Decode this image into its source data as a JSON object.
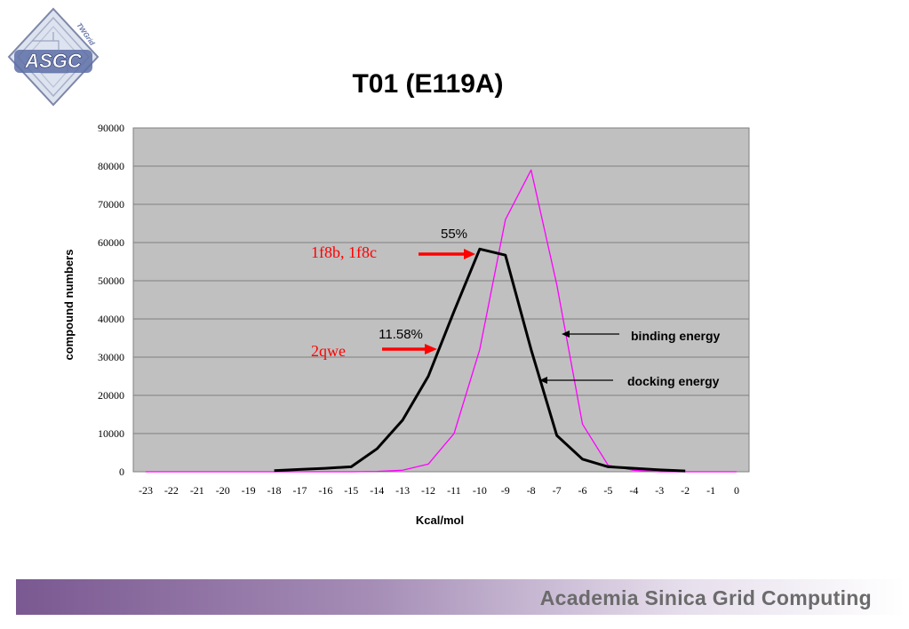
{
  "slide": {
    "title": "T01 (E119A)",
    "footer": "Academia Sinica Grid Computing",
    "logo_text": "ASGC",
    "logo_subtext": "TWGrid"
  },
  "chart_data": {
    "type": "line",
    "title": "",
    "xlabel": "Kcal/mol",
    "ylabel": "compound numbers",
    "xlim": [
      -23,
      0
    ],
    "ylim": [
      0,
      90000
    ],
    "x_ticks": [
      -23,
      -22,
      -21,
      -20,
      -19,
      -18,
      -17,
      -16,
      -15,
      -14,
      -13,
      -12,
      -11,
      -10,
      -9,
      -8,
      -7,
      -6,
      -5,
      -4,
      -3,
      -2,
      -1,
      0
    ],
    "y_ticks": [
      0,
      10000,
      20000,
      30000,
      40000,
      50000,
      60000,
      70000,
      80000,
      90000
    ],
    "grid": true,
    "background": "#c0c0c0",
    "series": [
      {
        "name": "docking energy",
        "color": "#000000",
        "x": [
          -18,
          -17,
          -16,
          -15,
          -14,
          -13,
          -12,
          -11,
          -10,
          -9,
          -8,
          -7,
          -6,
          -5,
          -4,
          -3,
          -2
        ],
        "values": [
          300,
          600,
          900,
          1300,
          6000,
          13500,
          25000,
          42000,
          58300,
          56700,
          32000,
          9500,
          3300,
          1300,
          900,
          500,
          200
        ]
      },
      {
        "name": "binding energy",
        "color": "#ff00ff",
        "x": [
          -23,
          -22,
          -21,
          -20,
          -19,
          -18,
          -17,
          -16,
          -15,
          -14,
          -13,
          -12,
          -11,
          -10,
          -9,
          -8,
          -7,
          -6,
          -5,
          -4,
          -3,
          -2,
          -1,
          0
        ],
        "values": [
          0,
          0,
          0,
          0,
          0,
          0,
          0,
          0,
          0,
          100,
          400,
          2000,
          10000,
          32000,
          66000,
          79000,
          49000,
          12500,
          1700,
          400,
          0,
          0,
          0,
          0
        ]
      }
    ],
    "annotations": [
      {
        "text": "55%",
        "color": "#000000"
      },
      {
        "text": "11.58%",
        "color": "#000000"
      },
      {
        "text": "1f8b, 1f8c",
        "color": "#ff0000"
      },
      {
        "text": "2qwe",
        "color": "#ff0000"
      },
      {
        "text": "binding energy",
        "color": "#000000"
      },
      {
        "text": "docking energy",
        "color": "#000000"
      }
    ]
  }
}
